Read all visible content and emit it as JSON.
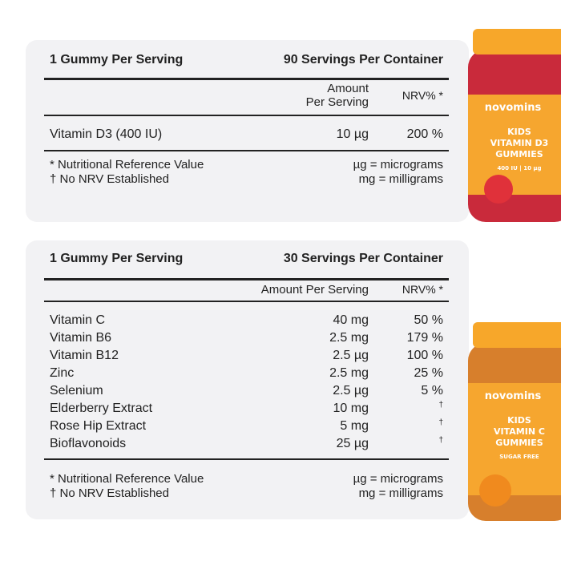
{
  "cards": [
    {
      "serving": "1 Gummy Per Serving",
      "servings_per_container": "90 Servings Per Container",
      "amount_header": [
        "Amount",
        "Per Serving"
      ],
      "nrv_header": "NRV% *",
      "rows": [
        [
          "Vitamin D3 (400 IU)",
          "10 µg",
          "200 %"
        ]
      ],
      "footnotes_left": [
        "* Nutritional Reference Value",
        "† No NRV Established"
      ],
      "footnotes_right": [
        "µg = micrograms",
        "mg = milligrams"
      ]
    },
    {
      "serving": "1 Gummy Per Serving",
      "servings_per_container": "30 Servings Per Container",
      "amount_header": [
        "Amount Per Serving"
      ],
      "nrv_header": "NRV% *",
      "rows": [
        [
          "Vitamin C",
          "40 mg",
          "50 %"
        ],
        [
          "Vitamin B6",
          "2.5 mg",
          "179 %"
        ],
        [
          "Vitamin B12",
          "2.5 µg",
          "100 %"
        ],
        [
          "Zinc",
          "2.5 mg",
          "25 %"
        ],
        [
          "Selenium",
          "2.5 µg",
          "5 %"
        ],
        [
          "Elderberry Extract",
          "10 mg",
          "†"
        ],
        [
          "Rose Hip Extract",
          "5 mg",
          "†"
        ],
        [
          "Bioflavonoids",
          "25 µg",
          "†"
        ]
      ],
      "footnotes_left": [
        "* Nutritional Reference Value",
        "† No NRV Established"
      ],
      "footnotes_right": [
        "µg = micrograms",
        "mg = milligrams"
      ]
    }
  ],
  "jars": [
    {
      "brand": "novomins",
      "lines": [
        "KIDS",
        "VITAMIN D3",
        "GUMMIES"
      ],
      "tag": "400 IU | 10 µg"
    },
    {
      "brand": "novomins",
      "lines": [
        "KIDS",
        "VITAMIN C",
        "GUMMIES"
      ],
      "tag": "SUGAR FREE"
    }
  ]
}
